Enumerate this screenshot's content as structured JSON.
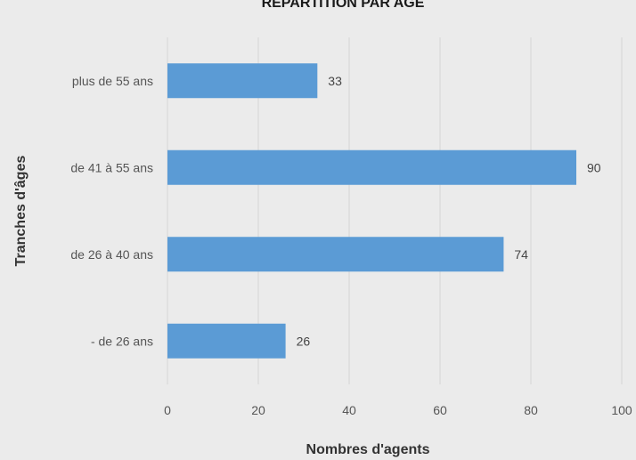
{
  "chart_data": {
    "type": "bar",
    "orientation": "horizontal",
    "title": "REPARTITION PAR AGE",
    "xlabel": "Nombres d'agents",
    "ylabel": "Tranches d'âges",
    "categories": [
      "plus de 55 ans",
      "de 41 à 55 ans",
      "de 26 à 40 ans",
      "- de 26 ans"
    ],
    "values": [
      33,
      90,
      74,
      26
    ],
    "data_labels": [
      "33",
      "90",
      "74",
      "26"
    ],
    "xlim": [
      0,
      100
    ],
    "x_ticks": [
      "0",
      "20",
      "40",
      "60",
      "80",
      "100"
    ],
    "grid": true,
    "legend": "none",
    "colors": {
      "bar": "#5b9bd5",
      "background": "#ebebeb",
      "grid": "#d4d4d4"
    }
  }
}
